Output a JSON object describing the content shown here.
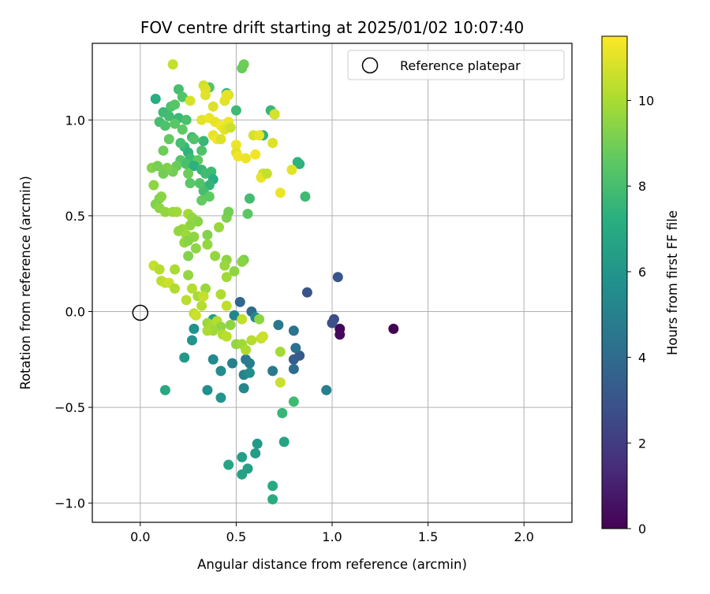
{
  "chart_data": {
    "type": "scatter",
    "title": "FOV centre drift starting at 2025/01/02 10:07:40",
    "xlabel": "Angular distance from reference (arcmin)",
    "ylabel": "Rotation from reference (arcmin)",
    "xlim": [
      -0.25,
      2.25
    ],
    "ylim": [
      -1.1,
      1.4
    ],
    "xticks": [
      0.0,
      0.5,
      1.0,
      1.5,
      2.0
    ],
    "xtick_labels": [
      "0.0",
      "0.5",
      "1.0",
      "1.5",
      "2.0"
    ],
    "yticks": [
      -1.0,
      -0.5,
      0.0,
      0.5,
      1.0
    ],
    "ytick_labels": [
      "−1.0",
      "−0.5",
      "0.0",
      "0.5",
      "1.0"
    ],
    "grid": true,
    "legend": {
      "position": "top-right",
      "entries": [
        "Reference platepar"
      ]
    },
    "reference_point": {
      "x": 0.0,
      "y": 0.0,
      "marker": "open circle"
    },
    "colorbar": {
      "label": "Hours from first FF file",
      "colormap": "viridis",
      "range": [
        0,
        11.5
      ],
      "ticks": [
        0,
        2,
        4,
        6,
        8,
        10
      ],
      "tick_labels": [
        "0",
        "2",
        "4",
        "6",
        "8",
        "10"
      ]
    },
    "points": [
      {
        "x": 1.32,
        "y": -0.09,
        "t": 0.0
      },
      {
        "x": 1.04,
        "y": -0.09,
        "t": 0.2
      },
      {
        "x": 1.04,
        "y": -0.12,
        "t": 0.3
      },
      {
        "x": 1.01,
        "y": -0.04,
        "t": 2.7
      },
      {
        "x": 1.0,
        "y": -0.06,
        "t": 2.8
      },
      {
        "x": 1.03,
        "y": 0.18,
        "t": 3.0
      },
      {
        "x": 0.87,
        "y": 0.1,
        "t": 2.9
      },
      {
        "x": 0.83,
        "y": -0.23,
        "t": 3.2
      },
      {
        "x": 0.8,
        "y": -0.25,
        "t": 3.4
      },
      {
        "x": 0.8,
        "y": -0.3,
        "t": 4.1
      },
      {
        "x": 0.81,
        "y": -0.19,
        "t": 4.3
      },
      {
        "x": 0.8,
        "y": -0.1,
        "t": 4.4
      },
      {
        "x": 0.72,
        "y": -0.07,
        "t": 4.6
      },
      {
        "x": 0.69,
        "y": -0.31,
        "t": 4.7
      },
      {
        "x": 0.97,
        "y": -0.41,
        "t": 4.9
      },
      {
        "x": 0.52,
        "y": 0.05,
        "t": 3.8
      },
      {
        "x": 0.58,
        "y": 0.0,
        "t": 4.0
      },
      {
        "x": 0.55,
        "y": -0.25,
        "t": 4.6
      },
      {
        "x": 0.57,
        "y": -0.27,
        "t": 4.8
      },
      {
        "x": 0.48,
        "y": -0.27,
        "t": 5.0
      },
      {
        "x": 0.54,
        "y": -0.33,
        "t": 5.1
      },
      {
        "x": 0.54,
        "y": -0.4,
        "t": 5.2
      },
      {
        "x": 0.57,
        "y": -0.32,
        "t": 5.6
      },
      {
        "x": 0.49,
        "y": -0.02,
        "t": 5.2
      },
      {
        "x": 0.6,
        "y": -0.03,
        "t": 5.3
      },
      {
        "x": 0.38,
        "y": -0.25,
        "t": 5.4
      },
      {
        "x": 0.42,
        "y": -0.31,
        "t": 5.5
      },
      {
        "x": 0.35,
        "y": -0.41,
        "t": 5.7
      },
      {
        "x": 0.42,
        "y": -0.45,
        "t": 6.0
      },
      {
        "x": 0.28,
        "y": -0.09,
        "t": 5.8
      },
      {
        "x": 0.27,
        "y": -0.15,
        "t": 5.9
      },
      {
        "x": 0.23,
        "y": -0.24,
        "t": 6.1
      },
      {
        "x": 0.13,
        "y": -0.41,
        "t": 6.9
      },
      {
        "x": 0.36,
        "y": -0.08,
        "t": 6.2
      },
      {
        "x": 0.38,
        "y": -0.04,
        "t": 6.4
      },
      {
        "x": 0.61,
        "y": -0.69,
        "t": 6.2
      },
      {
        "x": 0.6,
        "y": -0.74,
        "t": 6.3
      },
      {
        "x": 0.53,
        "y": -0.76,
        "t": 6.4
      },
      {
        "x": 0.56,
        "y": -0.82,
        "t": 6.5
      },
      {
        "x": 0.53,
        "y": -0.85,
        "t": 6.6
      },
      {
        "x": 0.46,
        "y": -0.8,
        "t": 6.8
      },
      {
        "x": 0.75,
        "y": -0.68,
        "t": 6.7
      },
      {
        "x": 0.69,
        "y": -0.91,
        "t": 7.0
      },
      {
        "x": 0.69,
        "y": -0.98,
        "t": 7.1
      },
      {
        "x": 0.74,
        "y": -0.53,
        "t": 7.6
      },
      {
        "x": 0.8,
        "y": -0.47,
        "t": 7.8
      },
      {
        "x": 0.83,
        "y": 0.77,
        "t": 7.3
      },
      {
        "x": 0.82,
        "y": 0.78,
        "t": 7.4
      },
      {
        "x": 0.86,
        "y": 0.6,
        "t": 7.8
      },
      {
        "x": 0.57,
        "y": 0.59,
        "t": 7.9
      },
      {
        "x": 0.56,
        "y": 0.51,
        "t": 8.5
      },
      {
        "x": 0.7,
        "y": 1.03,
        "t": 7.0
      },
      {
        "x": 0.68,
        "y": 1.05,
        "t": 7.6
      },
      {
        "x": 0.64,
        "y": 0.92,
        "t": 7.4
      },
      {
        "x": 0.5,
        "y": 1.05,
        "t": 7.8
      },
      {
        "x": 0.45,
        "y": 1.14,
        "t": 7.5
      },
      {
        "x": 0.36,
        "y": 1.17,
        "t": 8.3
      },
      {
        "x": 0.53,
        "y": 1.27,
        "t": 8.8
      },
      {
        "x": 0.54,
        "y": 1.29,
        "t": 8.9
      },
      {
        "x": 0.08,
        "y": 1.11,
        "t": 7.2
      },
      {
        "x": 0.2,
        "y": 1.16,
        "t": 8.0
      },
      {
        "x": 0.22,
        "y": 1.12,
        "t": 8.3
      },
      {
        "x": 0.16,
        "y": 1.07,
        "t": 8.2
      },
      {
        "x": 0.18,
        "y": 1.08,
        "t": 8.4
      },
      {
        "x": 0.12,
        "y": 1.04,
        "t": 7.8
      },
      {
        "x": 0.15,
        "y": 1.02,
        "t": 7.9
      },
      {
        "x": 0.2,
        "y": 1.01,
        "t": 7.7
      },
      {
        "x": 0.24,
        "y": 1.0,
        "t": 8.1
      },
      {
        "x": 0.1,
        "y": 0.99,
        "t": 8.0
      },
      {
        "x": 0.13,
        "y": 0.97,
        "t": 8.2
      },
      {
        "x": 0.18,
        "y": 0.98,
        "t": 8.5
      },
      {
        "x": 0.22,
        "y": 0.95,
        "t": 8.6
      },
      {
        "x": 0.27,
        "y": 0.91,
        "t": 7.9
      },
      {
        "x": 0.28,
        "y": 0.9,
        "t": 8.3
      },
      {
        "x": 0.33,
        "y": 0.89,
        "t": 7.6
      },
      {
        "x": 0.23,
        "y": 0.86,
        "t": 7.7
      },
      {
        "x": 0.21,
        "y": 0.88,
        "t": 8.0
      },
      {
        "x": 0.15,
        "y": 0.9,
        "t": 8.7
      },
      {
        "x": 0.12,
        "y": 0.84,
        "t": 8.9
      },
      {
        "x": 0.25,
        "y": 0.83,
        "t": 7.4
      },
      {
        "x": 0.26,
        "y": 0.8,
        "t": 7.8
      },
      {
        "x": 0.32,
        "y": 0.84,
        "t": 8.2
      },
      {
        "x": 0.21,
        "y": 0.79,
        "t": 8.4
      },
      {
        "x": 0.19,
        "y": 0.76,
        "t": 8.8
      },
      {
        "x": 0.24,
        "y": 0.77,
        "t": 8.1
      },
      {
        "x": 0.3,
        "y": 0.79,
        "t": 8.6
      },
      {
        "x": 0.28,
        "y": 0.76,
        "t": 7.3
      },
      {
        "x": 0.32,
        "y": 0.74,
        "t": 7.6
      },
      {
        "x": 0.34,
        "y": 0.72,
        "t": 7.9
      },
      {
        "x": 0.37,
        "y": 0.73,
        "t": 7.8
      },
      {
        "x": 0.38,
        "y": 0.69,
        "t": 7.2
      },
      {
        "x": 0.36,
        "y": 0.66,
        "t": 7.5
      },
      {
        "x": 0.33,
        "y": 0.63,
        "t": 8.0
      },
      {
        "x": 0.31,
        "y": 0.67,
        "t": 8.3
      },
      {
        "x": 0.26,
        "y": 0.67,
        "t": 8.5
      },
      {
        "x": 0.25,
        "y": 0.72,
        "t": 8.9
      },
      {
        "x": 0.17,
        "y": 0.73,
        "t": 9.0
      },
      {
        "x": 0.14,
        "y": 0.75,
        "t": 9.2
      },
      {
        "x": 0.12,
        "y": 0.72,
        "t": 9.0
      },
      {
        "x": 0.06,
        "y": 0.75,
        "t": 9.3
      },
      {
        "x": 0.09,
        "y": 0.76,
        "t": 9.1
      },
      {
        "x": 0.07,
        "y": 0.66,
        "t": 9.5
      },
      {
        "x": 0.36,
        "y": 0.6,
        "t": 8.6
      },
      {
        "x": 0.32,
        "y": 0.58,
        "t": 8.7
      },
      {
        "x": 0.1,
        "y": 0.59,
        "t": 9.2
      },
      {
        "x": 0.11,
        "y": 0.6,
        "t": 9.4
      },
      {
        "x": 0.08,
        "y": 0.56,
        "t": 9.3
      },
      {
        "x": 0.1,
        "y": 0.54,
        "t": 9.5
      },
      {
        "x": 0.13,
        "y": 0.52,
        "t": 9.6
      },
      {
        "x": 0.17,
        "y": 0.52,
        "t": 9.7
      },
      {
        "x": 0.19,
        "y": 0.52,
        "t": 9.8
      },
      {
        "x": 0.25,
        "y": 0.51,
        "t": 9.9
      },
      {
        "x": 0.27,
        "y": 0.49,
        "t": 9.6
      },
      {
        "x": 0.3,
        "y": 0.47,
        "t": 9.4
      },
      {
        "x": 0.26,
        "y": 0.45,
        "t": 9.5
      },
      {
        "x": 0.22,
        "y": 0.43,
        "t": 9.7
      },
      {
        "x": 0.2,
        "y": 0.42,
        "t": 9.6
      },
      {
        "x": 0.24,
        "y": 0.4,
        "t": 9.8
      },
      {
        "x": 0.28,
        "y": 0.39,
        "t": 9.5
      },
      {
        "x": 0.23,
        "y": 0.36,
        "t": 9.6
      },
      {
        "x": 0.25,
        "y": 0.37,
        "t": 9.4
      },
      {
        "x": 0.29,
        "y": 0.33,
        "t": 9.5
      },
      {
        "x": 0.35,
        "y": 0.4,
        "t": 9.3
      },
      {
        "x": 0.35,
        "y": 0.35,
        "t": 9.6
      },
      {
        "x": 0.41,
        "y": 0.44,
        "t": 9.7
      },
      {
        "x": 0.45,
        "y": 0.49,
        "t": 9.2
      },
      {
        "x": 0.46,
        "y": 0.52,
        "t": 9.0
      },
      {
        "x": 0.25,
        "y": 0.29,
        "t": 9.3
      },
      {
        "x": 0.39,
        "y": 0.29,
        "t": 9.6
      },
      {
        "x": 0.45,
        "y": 0.27,
        "t": 9.5
      },
      {
        "x": 0.54,
        "y": 0.27,
        "t": 9.1
      },
      {
        "x": 0.53,
        "y": 0.26,
        "t": 9.4
      },
      {
        "x": 0.44,
        "y": 0.24,
        "t": 9.7
      },
      {
        "x": 0.49,
        "y": 0.21,
        "t": 9.5
      },
      {
        "x": 0.45,
        "y": 0.18,
        "t": 9.8
      },
      {
        "x": 0.07,
        "y": 0.24,
        "t": 10.5
      },
      {
        "x": 0.1,
        "y": 0.22,
        "t": 10.2
      },
      {
        "x": 0.18,
        "y": 0.22,
        "t": 10.0
      },
      {
        "x": 0.25,
        "y": 0.19,
        "t": 9.6
      },
      {
        "x": 0.11,
        "y": 0.16,
        "t": 10.3
      },
      {
        "x": 0.13,
        "y": 0.15,
        "t": 10.4
      },
      {
        "x": 0.15,
        "y": 0.15,
        "t": 10.6
      },
      {
        "x": 0.18,
        "y": 0.12,
        "t": 10.1
      },
      {
        "x": 0.27,
        "y": 0.12,
        "t": 10.2
      },
      {
        "x": 0.34,
        "y": 0.12,
        "t": 9.7
      },
      {
        "x": 0.3,
        "y": 0.08,
        "t": 10.0
      },
      {
        "x": 0.24,
        "y": 0.06,
        "t": 10.3
      },
      {
        "x": 0.33,
        "y": 0.08,
        "t": 10.5
      },
      {
        "x": 0.32,
        "y": 0.03,
        "t": 10.2
      },
      {
        "x": 0.42,
        "y": 0.09,
        "t": 10.1
      },
      {
        "x": 0.45,
        "y": 0.03,
        "t": 10.4
      },
      {
        "x": 0.28,
        "y": -0.01,
        "t": 10.3
      },
      {
        "x": 0.29,
        "y": -0.02,
        "t": 10.6
      },
      {
        "x": 0.35,
        "y": -0.06,
        "t": 9.7
      },
      {
        "x": 0.37,
        "y": -0.07,
        "t": 9.9
      },
      {
        "x": 0.4,
        "y": -0.05,
        "t": 10.2
      },
      {
        "x": 0.42,
        "y": -0.08,
        "t": 9.6
      },
      {
        "x": 0.47,
        "y": -0.07,
        "t": 9.5
      },
      {
        "x": 0.38,
        "y": -0.1,
        "t": 9.8
      },
      {
        "x": 0.35,
        "y": -0.1,
        "t": 10.0
      },
      {
        "x": 0.43,
        "y": -0.12,
        "t": 10.1
      },
      {
        "x": 0.45,
        "y": -0.13,
        "t": 10.3
      },
      {
        "x": 0.53,
        "y": -0.04,
        "t": 10.4
      },
      {
        "x": 0.62,
        "y": -0.04,
        "t": 9.5
      },
      {
        "x": 0.5,
        "y": -0.17,
        "t": 9.6
      },
      {
        "x": 0.53,
        "y": -0.17,
        "t": 9.8
      },
      {
        "x": 0.55,
        "y": -0.2,
        "t": 10.0
      },
      {
        "x": 0.58,
        "y": -0.15,
        "t": 10.2
      },
      {
        "x": 0.63,
        "y": -0.14,
        "t": 10.4
      },
      {
        "x": 0.64,
        "y": -0.13,
        "t": 10.6
      },
      {
        "x": 0.73,
        "y": -0.21,
        "t": 9.9
      },
      {
        "x": 0.73,
        "y": -0.37,
        "t": 10.6
      },
      {
        "x": 0.17,
        "y": 1.29,
        "t": 10.5
      },
      {
        "x": 0.26,
        "y": 1.1,
        "t": 10.8
      },
      {
        "x": 0.33,
        "y": 1.18,
        "t": 10.7
      },
      {
        "x": 0.34,
        "y": 1.16,
        "t": 10.9
      },
      {
        "x": 0.34,
        "y": 1.13,
        "t": 11.0
      },
      {
        "x": 0.46,
        "y": 1.13,
        "t": 10.8
      },
      {
        "x": 0.44,
        "y": 1.1,
        "t": 11.0
      },
      {
        "x": 0.45,
        "y": 1.13,
        "t": 11.1
      },
      {
        "x": 0.38,
        "y": 1.07,
        "t": 10.9
      },
      {
        "x": 0.32,
        "y": 1.0,
        "t": 11.0
      },
      {
        "x": 0.36,
        "y": 1.01,
        "t": 11.2
      },
      {
        "x": 0.39,
        "y": 0.99,
        "t": 11.1
      },
      {
        "x": 0.42,
        "y": 0.97,
        "t": 11.3
      },
      {
        "x": 0.46,
        "y": 0.99,
        "t": 11.2
      },
      {
        "x": 0.44,
        "y": 0.95,
        "t": 11.0
      },
      {
        "x": 0.47,
        "y": 0.96,
        "t": 10.6
      },
      {
        "x": 0.38,
        "y": 0.92,
        "t": 11.1
      },
      {
        "x": 0.4,
        "y": 0.9,
        "t": 11.3
      },
      {
        "x": 0.42,
        "y": 0.9,
        "t": 10.9
      },
      {
        "x": 0.5,
        "y": 0.87,
        "t": 11.2
      },
      {
        "x": 0.5,
        "y": 0.83,
        "t": 11.0
      },
      {
        "x": 0.51,
        "y": 0.81,
        "t": 11.3
      },
      {
        "x": 0.55,
        "y": 0.8,
        "t": 11.2
      },
      {
        "x": 0.59,
        "y": 0.92,
        "t": 10.8
      },
      {
        "x": 0.62,
        "y": 0.92,
        "t": 11.1
      },
      {
        "x": 0.6,
        "y": 0.82,
        "t": 11.3
      },
      {
        "x": 0.69,
        "y": 0.88,
        "t": 10.9
      },
      {
        "x": 0.7,
        "y": 1.03,
        "t": 10.8
      },
      {
        "x": 0.64,
        "y": 0.72,
        "t": 10.6
      },
      {
        "x": 0.63,
        "y": 0.7,
        "t": 11.1
      },
      {
        "x": 0.66,
        "y": 0.72,
        "t": 10.5
      },
      {
        "x": 0.79,
        "y": 0.74,
        "t": 11.0
      },
      {
        "x": 0.73,
        "y": 0.62,
        "t": 11.2
      }
    ]
  }
}
